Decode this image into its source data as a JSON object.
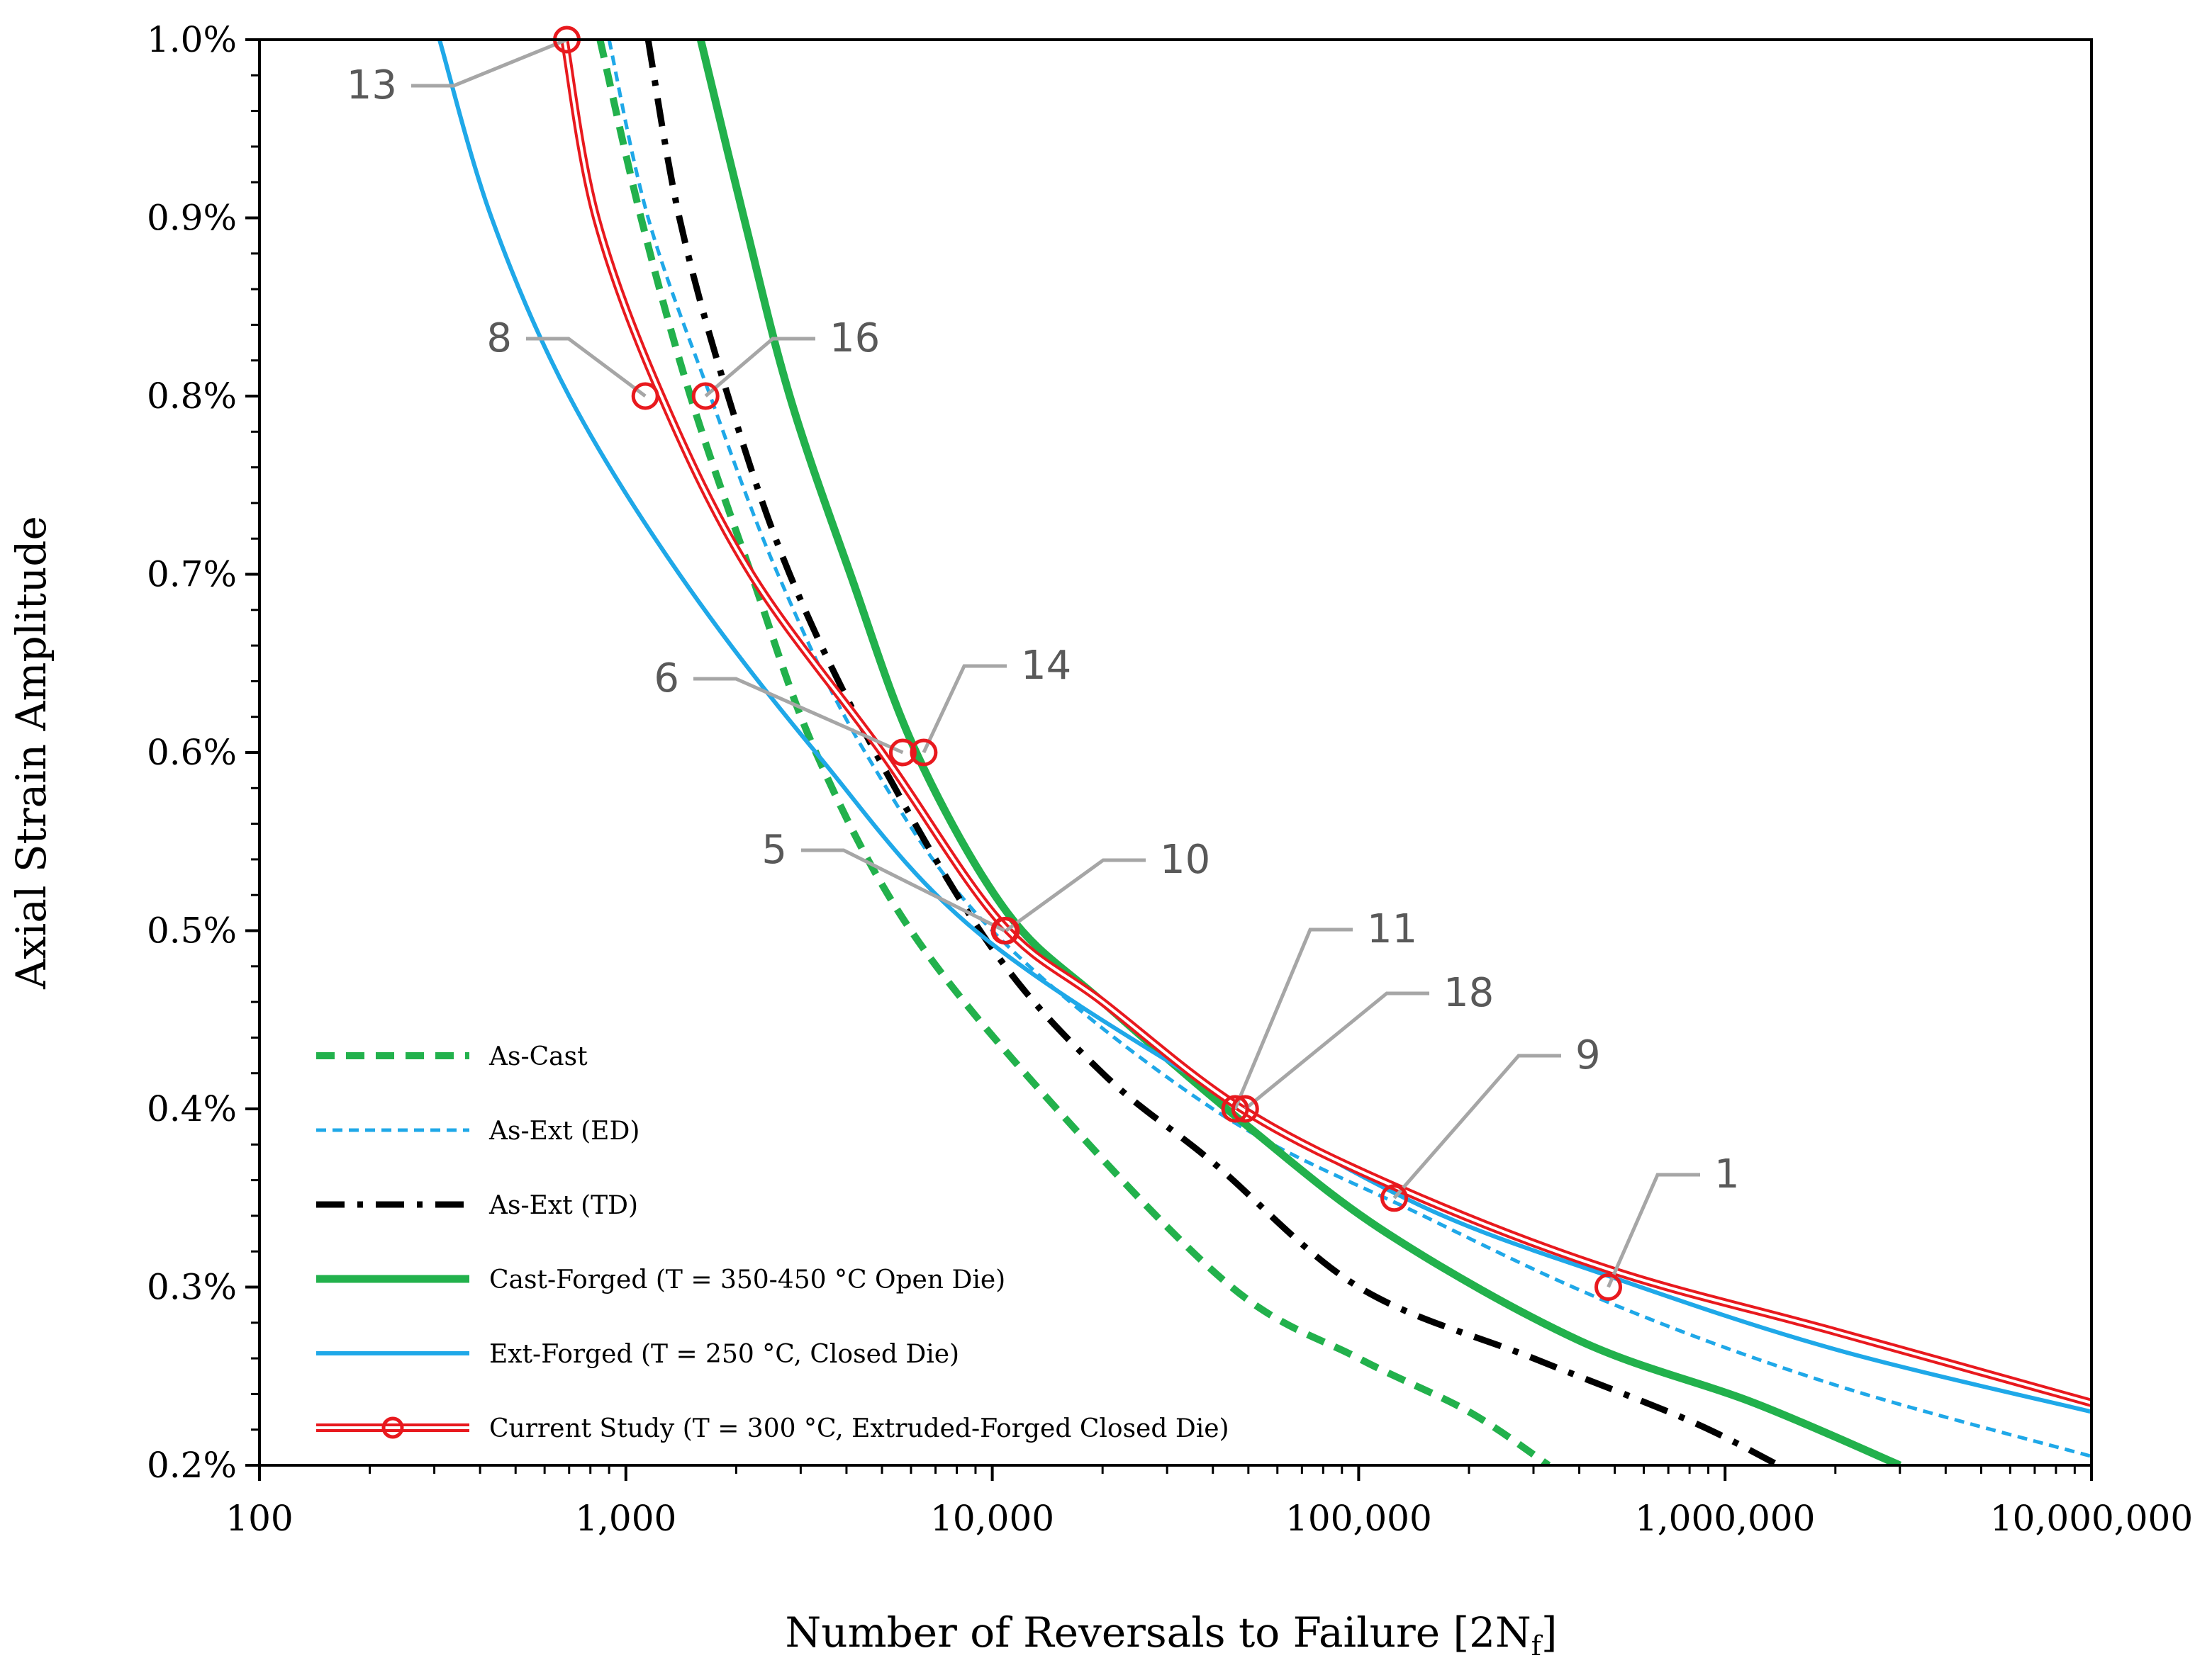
{
  "chart_data": {
    "type": "line",
    "title": "",
    "xlabel": "Number of Reversals to Failure [2N",
    "xlabel_sub": "f",
    "xlabel_end": "]",
    "ylabel": "Axial Strain Amplitude",
    "xscale": "log",
    "xlim": [
      100,
      10000000
    ],
    "ylim": [
      0.2,
      1.0
    ],
    "x_ticks": [
      100,
      1000,
      10000,
      100000,
      1000000,
      10000000
    ],
    "x_tick_labels": [
      "100",
      "1,000",
      "10,000",
      "100,000",
      "1,000,000",
      "10,000,000"
    ],
    "y_ticks": [
      0.2,
      0.3,
      0.4,
      0.5,
      0.6,
      0.7,
      0.8,
      0.9,
      1.0
    ],
    "y_tick_labels": [
      "0.2%",
      "0.3%",
      "0.4%",
      "0.5%",
      "0.6%",
      "0.7%",
      "0.8%",
      "0.9%",
      "1.0%"
    ],
    "legend_position": "bottom-left",
    "series": [
      {
        "name": "As-Cast",
        "color": "#22B14C",
        "style": "dashed-thick",
        "points": [
          [
            850,
            1.0
          ],
          [
            1100,
            0.9
          ],
          [
            1500,
            0.8
          ],
          [
            2200,
            0.7
          ],
          [
            3300,
            0.6
          ],
          [
            6000,
            0.5
          ],
          [
            15000,
            0.4
          ],
          [
            45000,
            0.3
          ],
          [
            100000,
            0.26
          ],
          [
            200000,
            0.23
          ],
          [
            330000,
            0.2
          ]
        ]
      },
      {
        "name": "As-Ext (ED)",
        "color": "#1FA8E8",
        "style": "dashed-thin",
        "points": [
          [
            900,
            1.0
          ],
          [
            1150,
            0.9
          ],
          [
            1700,
            0.8
          ],
          [
            2600,
            0.7
          ],
          [
            4500,
            0.6
          ],
          [
            10000,
            0.5
          ],
          [
            40000,
            0.4
          ],
          [
            150000,
            0.34
          ],
          [
            500000,
            0.29
          ],
          [
            2000000,
            0.245
          ],
          [
            10000000,
            0.205
          ]
        ]
      },
      {
        "name": "As-Ext (TD)",
        "color": "#000000",
        "style": "dash-dot",
        "points": [
          [
            1150,
            1.0
          ],
          [
            1400,
            0.9
          ],
          [
            1900,
            0.8
          ],
          [
            2800,
            0.7
          ],
          [
            4800,
            0.6
          ],
          [
            10000,
            0.49
          ],
          [
            20000,
            0.42
          ],
          [
            40000,
            0.37
          ],
          [
            100000,
            0.3
          ],
          [
            300000,
            0.26
          ],
          [
            800000,
            0.225
          ],
          [
            1400000,
            0.2
          ]
        ]
      },
      {
        "name": "Cast-Forged (T = 350-450 °C Open Die)",
        "color": "#22B14C",
        "style": "solid-thick",
        "points": [
          [
            1600,
            1.0
          ],
          [
            2100,
            0.9
          ],
          [
            2800,
            0.8
          ],
          [
            4100,
            0.7
          ],
          [
            6200,
            0.6
          ],
          [
            11000,
            0.51
          ],
          [
            20000,
            0.46
          ],
          [
            50000,
            0.39
          ],
          [
            120000,
            0.33
          ],
          [
            400000,
            0.27
          ],
          [
            1200000,
            0.235
          ],
          [
            3000000,
            0.2
          ]
        ]
      },
      {
        "name": "Ext-Forged (T = 250 °C, Closed Die)",
        "color": "#1FA8E8",
        "style": "solid",
        "points": [
          [
            310,
            1.0
          ],
          [
            430,
            0.9
          ],
          [
            700,
            0.8
          ],
          [
            1400,
            0.7
          ],
          [
            3300,
            0.6
          ],
          [
            9000,
            0.5
          ],
          [
            45000,
            0.405
          ],
          [
            150000,
            0.345
          ],
          [
            500000,
            0.305
          ],
          [
            2000000,
            0.265
          ],
          [
            10000000,
            0.23
          ]
        ]
      },
      {
        "name": "Current Study (T = 300 °C, Extruded-Forged Closed Die)",
        "color": "#E8191E",
        "style": "double-line-markers",
        "points": [
          [
            680,
            1.0
          ],
          [
            830,
            0.9
          ],
          [
            1250,
            0.8
          ],
          [
            2200,
            0.7
          ],
          [
            5000,
            0.6
          ],
          [
            10500,
            0.505
          ],
          [
            20000,
            0.46
          ],
          [
            48000,
            0.4
          ],
          [
            130000,
            0.355
          ],
          [
            480000,
            0.31
          ],
          [
            2000000,
            0.275
          ],
          [
            10000000,
            0.235
          ]
        ],
        "markers": [
          {
            "x": 690,
            "y": 1.0,
            "label": "13"
          },
          {
            "x": 1130,
            "y": 0.8,
            "label": "8"
          },
          {
            "x": 1650,
            "y": 0.8,
            "label": "16"
          },
          {
            "x": 5700,
            "y": 0.6,
            "label": "6"
          },
          {
            "x": 6500,
            "y": 0.6,
            "label": "14"
          },
          {
            "x": 10800,
            "y": 0.5,
            "label": "5"
          },
          {
            "x": 10900,
            "y": 0.5,
            "label": "10"
          },
          {
            "x": 46000,
            "y": 0.4,
            "label": "11"
          },
          {
            "x": 49000,
            "y": 0.4,
            "label": "18"
          },
          {
            "x": 125000,
            "y": 0.35,
            "label": "9"
          },
          {
            "x": 480000,
            "y": 0.3,
            "label": "1"
          }
        ]
      }
    ]
  }
}
